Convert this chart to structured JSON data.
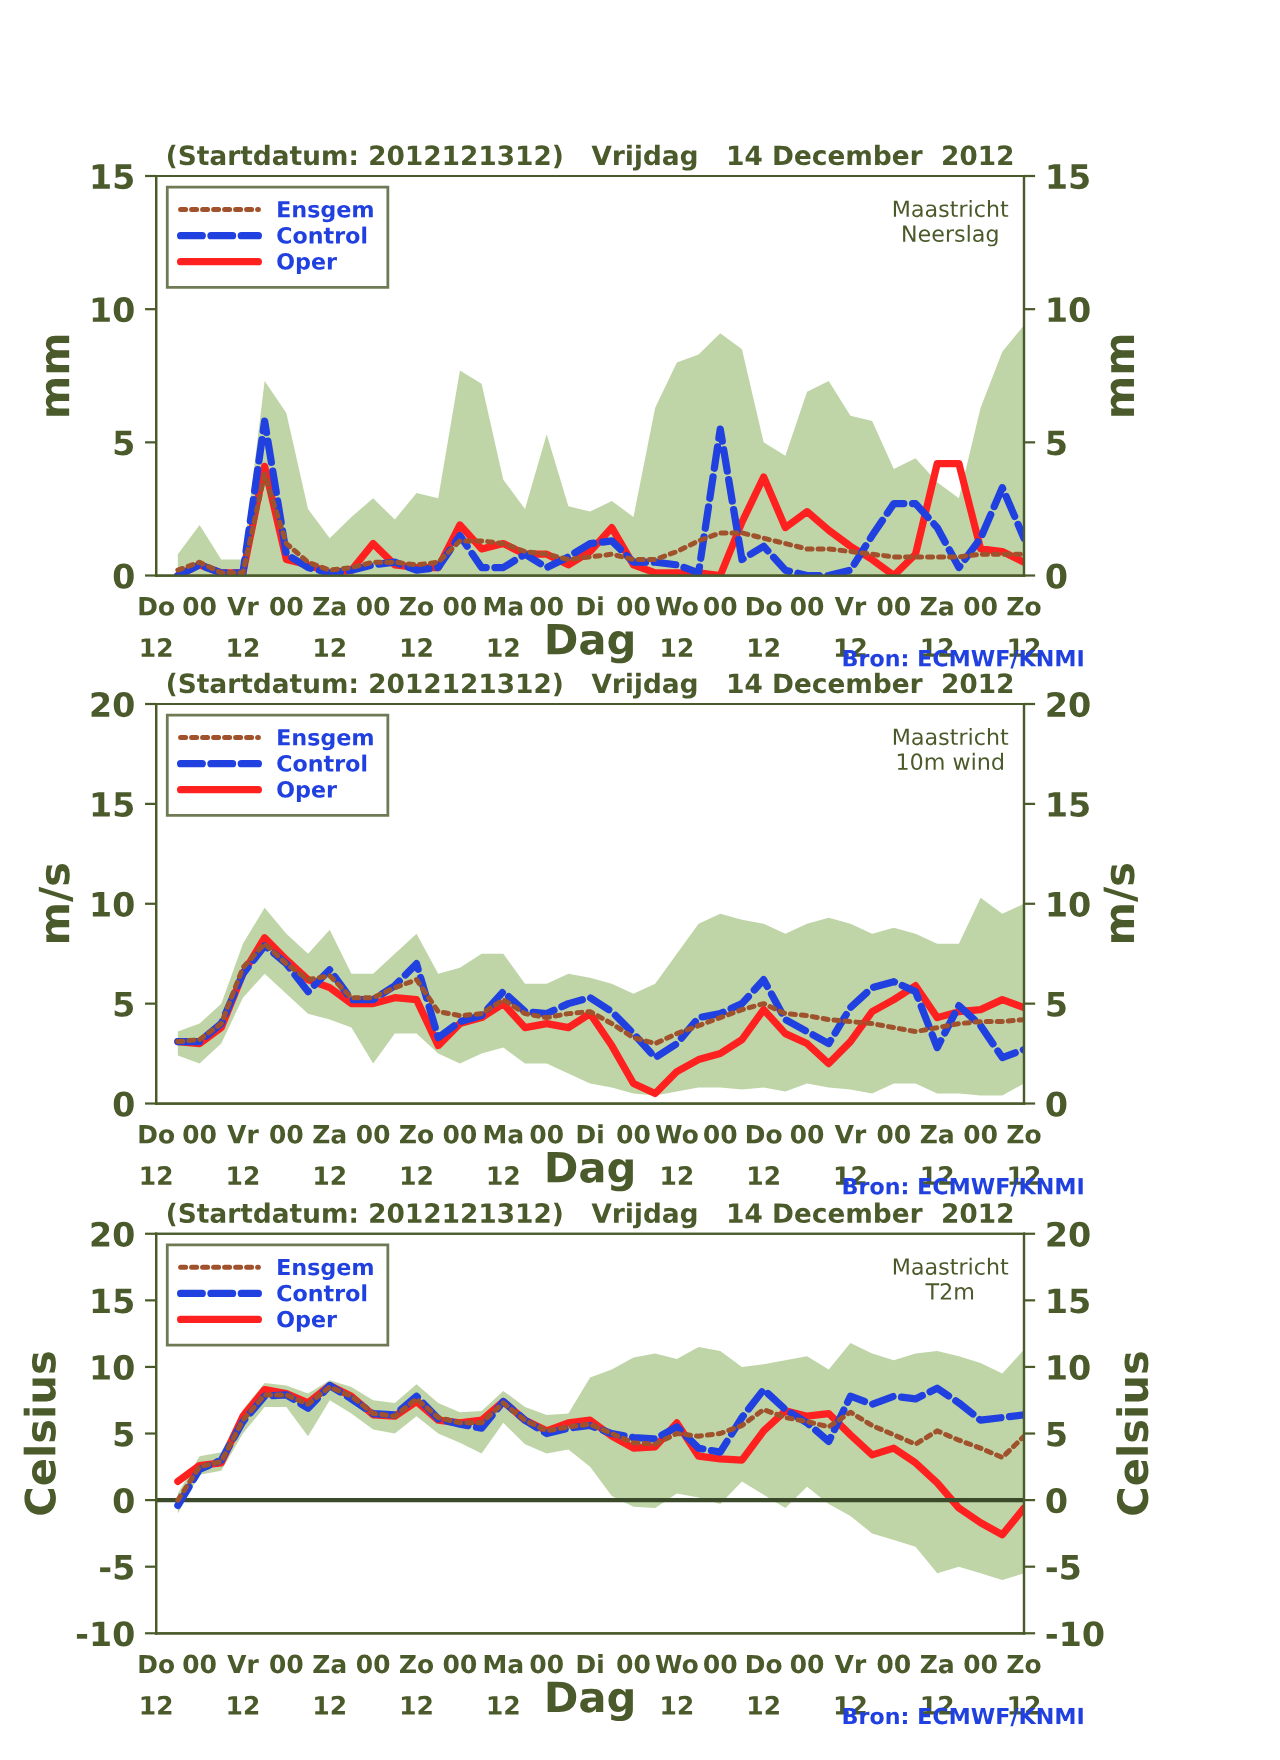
{
  "chart_data": [
    {
      "type": "line",
      "title": "(Startdatum: 2012121312)   Vrijdag   14 December  2012",
      "xlabel": "Dag",
      "ylabel": "mm",
      "y2label": "mm",
      "annotations": [
        "Maastricht\nNeerslag",
        "Bron: ECMWF/KNMI"
      ],
      "categories": [
        "Do\n12",
        null,
        "00",
        null,
        "Vr\n12",
        null,
        "00",
        null,
        "Za\n12",
        null,
        "00",
        null,
        "Zo\n12",
        null,
        "00",
        null,
        "Ma\n12",
        null,
        "00",
        null,
        "Di",
        null,
        "00",
        null,
        "Wo\n12",
        null,
        "00",
        null,
        "Do\n12",
        null,
        "00",
        null,
        "Vr\n12",
        null,
        "00",
        null,
        "Za\n12",
        null,
        "00",
        null,
        "Zo\n12"
      ],
      "ylim": [
        0,
        15
      ],
      "yticks": [
        0,
        5,
        10,
        15
      ],
      "y2lim": [
        0,
        15
      ],
      "y2ticks": [
        0,
        5,
        10,
        15
      ],
      "legend": "top left",
      "grid": false,
      "series": [
        {
          "name": "Ensgem",
          "color": "#a0522d",
          "line_style": "dotted",
          "values": [
            null,
            0.2,
            0.5,
            0.1,
            0.1,
            3.8,
            1.2,
            0.5,
            0.2,
            0.3,
            0.5,
            0.5,
            0.4,
            0.5,
            1.3,
            1.3,
            1.2,
            0.9,
            0.8,
            0.6,
            0.7,
            0.8,
            0.6,
            0.6,
            0.9,
            1.3,
            1.6,
            1.6,
            1.4,
            1.2,
            1.0,
            1.0,
            0.9,
            0.8,
            0.7,
            0.7,
            0.7,
            0.7,
            0.8,
            0.8,
            0.8
          ],
          "lower": [
            null,
            0,
            0,
            0,
            0,
            0,
            0,
            0,
            0,
            0,
            0,
            0,
            0,
            0,
            0,
            0,
            0,
            0,
            0,
            0,
            0,
            0,
            0,
            0,
            0,
            0,
            0,
            0,
            0,
            0,
            0,
            0,
            0,
            0,
            0,
            0,
            0,
            0,
            0,
            0,
            0
          ],
          "upper": [
            null,
            0.8,
            1.9,
            0.6,
            0.6,
            7.3,
            6.1,
            2.5,
            1.4,
            2.2,
            2.9,
            2.1,
            3.1,
            2.9,
            7.7,
            7.2,
            3.6,
            2.5,
            5.3,
            2.6,
            2.4,
            2.8,
            2.2,
            6.3,
            8.0,
            8.3,
            9.1,
            8.5,
            5.0,
            4.5,
            6.9,
            7.3,
            6.0,
            5.8,
            4.0,
            4.4,
            3.5,
            2.9,
            6.3,
            8.4,
            9.4
          ]
        },
        {
          "name": "Control",
          "color": "#2040e0",
          "line_style": "dashed",
          "values": [
            null,
            0,
            0.4,
            0.1,
            0.1,
            5.8,
            0.8,
            0.3,
            0.1,
            0.2,
            0.4,
            0.5,
            0.2,
            0.3,
            1.5,
            0.3,
            0.3,
            0.8,
            0.3,
            0.7,
            1.2,
            1.3,
            0.5,
            0.5,
            0.4,
            0.1,
            5.5,
            0.6,
            1.1,
            0.2,
            0,
            0,
            0.2,
            1.5,
            2.7,
            2.7,
            1.8,
            0.3,
            1.4,
            3.3,
            1.4
          ]
        },
        {
          "name": "Oper",
          "color": "#ff2020",
          "line_style": "solid",
          "values": [
            null,
            0,
            0.4,
            0.1,
            0.1,
            4.1,
            0.6,
            0.4,
            0.1,
            0.2,
            1.2,
            0.4,
            0.3,
            0.3,
            1.9,
            1.0,
            1.2,
            0.8,
            0.8,
            0.4,
            0.9,
            1.8,
            0.4,
            0.1,
            0.1,
            0.1,
            0,
            2.0,
            3.7,
            1.8,
            2.4,
            1.7,
            1.1,
            0.6,
            0,
            0.8,
            4.2,
            4.2,
            1.0,
            0.9,
            0.5
          ]
        }
      ]
    },
    {
      "type": "line",
      "title": "(Startdatum: 2012121312)   Vrijdag   14 December  2012",
      "xlabel": "Dag",
      "ylabel": "m/s",
      "y2label": "m/s",
      "annotations": [
        "Maastricht\n10m wind",
        "Bron: ECMWF/KNMI"
      ],
      "categories": [
        "Do\n12",
        null,
        "00",
        null,
        "Vr\n12",
        null,
        "00",
        null,
        "Za\n12",
        null,
        "00",
        null,
        "Zo\n12",
        null,
        "00",
        null,
        "Ma\n12",
        null,
        "00",
        null,
        "Di",
        null,
        "00",
        null,
        "Wo\n12",
        null,
        "00",
        null,
        "Do\n12",
        null,
        "00",
        null,
        "Vr\n12",
        null,
        "00",
        null,
        "Za\n12",
        null,
        "00",
        null,
        "Zo\n12"
      ],
      "ylim": [
        0,
        20
      ],
      "yticks": [
        0,
        5,
        10,
        15,
        20
      ],
      "y2lim": [
        0,
        20
      ],
      "y2ticks": [
        0,
        5,
        10,
        15,
        20
      ],
      "legend": "top left",
      "grid": false,
      "series": [
        {
          "name": "Ensgem",
          "color": "#a0522d",
          "line_style": "dotted",
          "values": [
            null,
            3.1,
            3.2,
            4.0,
            6.8,
            8.0,
            7.0,
            6.2,
            6.4,
            5.3,
            5.3,
            5.8,
            6.2,
            4.6,
            4.4,
            4.5,
            5.2,
            4.5,
            4.3,
            4.5,
            4.6,
            4.0,
            3.3,
            3.0,
            3.5,
            3.9,
            4.3,
            4.7,
            5.0,
            4.5,
            4.4,
            4.2,
            4.1,
            4.0,
            3.8,
            3.6,
            3.8,
            4.0,
            4.1,
            4.1,
            4.2
          ],
          "lower": [
            null,
            2.4,
            2.0,
            3.0,
            5.3,
            6.5,
            5.5,
            4.5,
            4.2,
            3.8,
            2.0,
            3.5,
            3.5,
            2.5,
            2.0,
            2.5,
            2.8,
            2.0,
            2.0,
            1.5,
            1.0,
            0.8,
            0.5,
            0.4,
            0.6,
            0.8,
            0.8,
            0.7,
            0.8,
            0.6,
            1.0,
            0.8,
            0.7,
            0.5,
            1.0,
            1.0,
            0.5,
            0.5,
            0.4,
            0.4,
            1.0
          ],
          "upper": [
            null,
            3.6,
            4.0,
            5.0,
            8.0,
            9.8,
            8.5,
            7.5,
            8.7,
            6.5,
            6.5,
            7.5,
            8.5,
            6.5,
            6.8,
            7.5,
            7.5,
            6.0,
            6.0,
            6.5,
            6.3,
            6.0,
            5.5,
            6.0,
            7.5,
            9.0,
            9.5,
            9.2,
            9.0,
            8.5,
            9.0,
            9.3,
            9.0,
            8.5,
            8.8,
            8.5,
            8.0,
            8.0,
            10.3,
            9.5,
            10.0
          ]
        },
        {
          "name": "Control",
          "color": "#2040e0",
          "line_style": "dashed",
          "values": [
            null,
            3.1,
            3.1,
            4.0,
            6.5,
            7.9,
            7.0,
            5.6,
            6.7,
            5.2,
            5.2,
            5.9,
            7.0,
            3.3,
            4.1,
            4.4,
            5.6,
            4.6,
            4.5,
            5.0,
            5.3,
            4.6,
            3.5,
            2.3,
            3.0,
            4.3,
            4.5,
            5.0,
            6.2,
            4.2,
            3.6,
            3.0,
            4.8,
            5.8,
            6.1,
            5.6,
            2.8,
            4.9,
            3.9,
            2.3,
            2.7
          ]
        },
        {
          "name": "Oper",
          "color": "#ff2020",
          "line_style": "solid",
          "values": [
            null,
            3.1,
            3.0,
            3.8,
            6.5,
            8.3,
            7.2,
            6.2,
            5.8,
            5.0,
            5.0,
            5.3,
            5.2,
            2.9,
            4.0,
            4.3,
            5.0,
            3.8,
            4.0,
            3.8,
            4.5,
            2.9,
            1.0,
            0.5,
            1.6,
            2.2,
            2.5,
            3.2,
            4.7,
            3.5,
            3.0,
            2.0,
            3.1,
            4.6,
            5.2,
            5.9,
            4.3,
            4.6,
            4.7,
            5.2,
            4.8
          ]
        }
      ]
    },
    {
      "type": "line",
      "title": "(Startdatum: 2012121312)   Vrijdag   14 December  2012",
      "xlabel": "Dag",
      "ylabel": "Celsius",
      "y2label": "Celsius",
      "annotations": [
        "Maastricht\nT2m",
        "Bron: ECMWF/KNMI"
      ],
      "categories": [
        "Do\n12",
        null,
        "00",
        null,
        "Vr\n12",
        null,
        "00",
        null,
        "Za\n12",
        null,
        "00",
        null,
        "Zo\n12",
        null,
        "00",
        null,
        "Ma\n12",
        null,
        "00",
        null,
        "Di",
        null,
        "00",
        null,
        "Wo\n12",
        null,
        "00",
        null,
        "Do\n12",
        null,
        "00",
        null,
        "Vr\n12",
        null,
        "00",
        null,
        "Za\n12",
        null,
        "00",
        null,
        "Zo\n12"
      ],
      "ylim": [
        -10,
        20
      ],
      "yticks": [
        -10,
        -5,
        0,
        5,
        10,
        15,
        20
      ],
      "y2lim": [
        -10,
        20
      ],
      "y2ticks": [
        -10,
        -5,
        0,
        5,
        10,
        15,
        20
      ],
      "legend": "top left",
      "grid": false,
      "ref_lines": [
        {
          "axis": "y",
          "value": 0,
          "label": null,
          "color": "#3a4a2a"
        }
      ],
      "series": [
        {
          "name": "Ensgem",
          "color": "#a0522d",
          "line_style": "dotted",
          "values": [
            null,
            0.0,
            2.5,
            2.9,
            6.0,
            7.9,
            7.9,
            7.2,
            8.5,
            7.8,
            6.5,
            6.3,
            7.6,
            6.2,
            5.8,
            5.8,
            7.3,
            6.0,
            5.2,
            5.5,
            5.7,
            5.0,
            4.3,
            4.2,
            5.0,
            4.8,
            5.0,
            5.6,
            6.8,
            6.2,
            5.9,
            5.5,
            6.6,
            5.6,
            4.9,
            4.2,
            5.2,
            4.5,
            3.9,
            3.2,
            4.8
          ],
          "lower": [
            null,
            -1.0,
            1.9,
            2.2,
            5.0,
            7.0,
            7.0,
            4.8,
            7.5,
            6.5,
            5.3,
            5.0,
            6.3,
            5.0,
            4.3,
            3.5,
            5.8,
            4.2,
            3.5,
            3.8,
            2.5,
            0.3,
            -0.5,
            -0.6,
            0.5,
            0.2,
            -0.3,
            1.4,
            0.4,
            -0.6,
            1.0,
            -0.3,
            -1.2,
            -2.5,
            -3.0,
            -3.5,
            -5.5,
            -5.0,
            -5.5,
            -6.0,
            -5.5
          ],
          "upper": [
            null,
            0.5,
            3.3,
            3.6,
            6.8,
            8.8,
            8.6,
            8.0,
            9.0,
            8.5,
            7.5,
            7.3,
            8.7,
            7.3,
            6.6,
            6.7,
            8.2,
            7.0,
            6.4,
            6.5,
            9.2,
            9.8,
            10.7,
            11.0,
            10.6,
            11.5,
            11.2,
            10.0,
            10.2,
            10.5,
            10.8,
            9.8,
            11.8,
            11.0,
            10.5,
            11.0,
            11.2,
            10.8,
            10.3,
            9.5,
            11.3
          ]
        },
        {
          "name": "Control",
          "color": "#2040e0",
          "line_style": "dashed",
          "values": [
            null,
            -0.4,
            2.3,
            3.0,
            5.9,
            7.8,
            7.9,
            6.9,
            8.6,
            7.6,
            6.5,
            6.4,
            7.8,
            6.1,
            5.7,
            5.4,
            7.4,
            6.0,
            5.0,
            5.4,
            5.6,
            5.0,
            4.7,
            4.6,
            5.5,
            3.9,
            3.6,
            6.2,
            8.3,
            6.8,
            5.8,
            4.4,
            7.8,
            7.2,
            7.8,
            7.6,
            8.4,
            7.3,
            6.0,
            6.2,
            6.4
          ]
        },
        {
          "name": "Oper",
          "color": "#ff2020",
          "line_style": "solid",
          "values": [
            null,
            1.4,
            2.6,
            2.8,
            6.3,
            8.3,
            8.0,
            7.3,
            8.6,
            7.8,
            6.4,
            6.3,
            7.4,
            6.0,
            5.8,
            6.0,
            7.4,
            6.0,
            5.2,
            5.8,
            6.0,
            4.8,
            3.9,
            4.0,
            5.8,
            3.3,
            3.1,
            3.0,
            5.2,
            6.7,
            6.3,
            6.5,
            4.9,
            3.4,
            3.9,
            2.8,
            1.3,
            -0.6,
            -1.7,
            -2.6,
            -0.6
          ]
        }
      ]
    }
  ]
}
